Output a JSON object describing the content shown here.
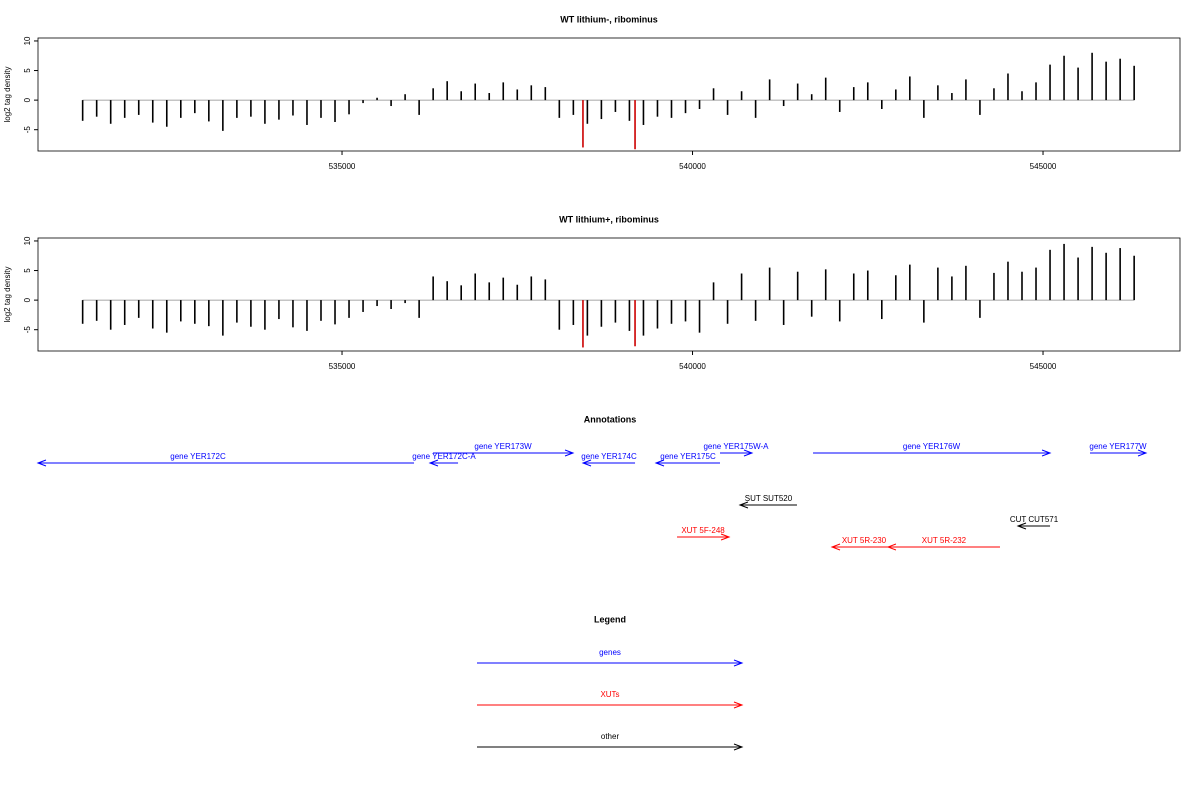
{
  "chart_data": [
    {
      "type": "bar",
      "title": "WT lithium-, ribominus",
      "ylabel": "log2 tag density",
      "xlim": [
        530663,
        546954
      ],
      "ylim": [
        -8.6,
        10.5
      ],
      "xticks": [
        535000,
        540000,
        545000
      ],
      "yticks": [
        -5,
        0,
        5,
        10
      ],
      "series": [
        {
          "color": "#000000",
          "x": [
            531300,
            531500,
            531700,
            531900,
            532100,
            532300,
            532500,
            532700,
            532900,
            533100,
            533300,
            533500,
            533700,
            533900,
            534100,
            534300,
            534500,
            534700,
            534900,
            535100,
            535300,
            535500,
            535700,
            535900,
            536100,
            536300,
            536500,
            536700,
            536900,
            537100,
            537300,
            537500,
            537700,
            537900,
            538100,
            538300,
            538500,
            538700,
            538900,
            539100,
            539300,
            539500,
            539700,
            539900,
            540100,
            540300,
            540500,
            540700,
            540900,
            541100,
            541300,
            541500,
            541700,
            541900,
            542100,
            542300,
            542500,
            542700,
            542900,
            543100,
            543300,
            543500,
            543700,
            543900,
            544100,
            544300,
            544500,
            544700,
            544900,
            545100,
            545300,
            545500,
            545700,
            545900,
            546100,
            546300
          ],
          "values": [
            -3.5,
            -2.8,
            -4,
            -3,
            -2.5,
            -3.8,
            -4.5,
            -3,
            -2.2,
            -3.6,
            -5.2,
            -3,
            -2.8,
            -4,
            -3.3,
            -2.6,
            -4.2,
            -3,
            -3.7,
            -2.4,
            -0.5,
            0.4,
            -1,
            1,
            -2.5,
            2,
            3.2,
            1.5,
            2.8,
            1.2,
            3,
            1.8,
            2.5,
            2.2,
            -3,
            -2.5,
            -4,
            -3.2,
            -2,
            -3.5,
            -4.2,
            -2.8,
            -3,
            -2.2,
            -1.5,
            2,
            -2.5,
            1.5,
            -3,
            3.5,
            -1,
            2.8,
            1,
            3.8,
            -2,
            2.2,
            3,
            -1.5,
            1.8,
            4,
            -3,
            2.5,
            1.2,
            3.5,
            -2.5,
            2,
            4.5,
            1.5,
            3,
            6,
            7.5,
            5.5,
            8,
            6.5,
            7,
            5.8
          ]
        },
        {
          "color": "#cc0000",
          "x": [
            538437,
            539180
          ],
          "values": [
            -8,
            -8.3
          ]
        }
      ]
    },
    {
      "type": "bar",
      "title": "WT lithium+, ribominus",
      "ylabel": "log2 tag density",
      "xlim": [
        530663,
        546954
      ],
      "ylim": [
        -8.6,
        10.5
      ],
      "xticks": [
        535000,
        540000,
        545000
      ],
      "yticks": [
        -5,
        0,
        5,
        10
      ],
      "series": [
        {
          "color": "#000000",
          "x": [
            531300,
            531500,
            531700,
            531900,
            532100,
            532300,
            532500,
            532700,
            532900,
            533100,
            533300,
            533500,
            533700,
            533900,
            534100,
            534300,
            534500,
            534700,
            534900,
            535100,
            535300,
            535500,
            535700,
            535900,
            536100,
            536300,
            536500,
            536700,
            536900,
            537100,
            537300,
            537500,
            537700,
            537900,
            538100,
            538300,
            538500,
            538700,
            538900,
            539100,
            539300,
            539500,
            539700,
            539900,
            540100,
            540300,
            540500,
            540700,
            540900,
            541100,
            541300,
            541500,
            541700,
            541900,
            542100,
            542300,
            542500,
            542700,
            542900,
            543100,
            543300,
            543500,
            543700,
            543900,
            544100,
            544300,
            544500,
            544700,
            544900,
            545100,
            545300,
            545500,
            545700,
            545900,
            546100,
            546300
          ],
          "values": [
            -4,
            -3.5,
            -5,
            -4.2,
            -3,
            -4.8,
            -5.5,
            -3.6,
            -4,
            -4.4,
            -6,
            -3.8,
            -4.5,
            -5,
            -3.2,
            -4.6,
            -5.2,
            -3.5,
            -4.1,
            -3,
            -2,
            -1,
            -1.5,
            -0.5,
            -3,
            4,
            3.2,
            2.5,
            4.5,
            3,
            3.8,
            2.6,
            4,
            3.5,
            -5,
            -4.2,
            -6,
            -4.5,
            -3.8,
            -5.2,
            -6,
            -4.8,
            -4,
            -3.6,
            -5.5,
            3,
            -4,
            4.5,
            -3.5,
            5.5,
            -4.2,
            4.8,
            -2.8,
            5.2,
            -3.6,
            4.5,
            5,
            -3.2,
            4.2,
            6,
            -3.8,
            5.5,
            4,
            5.8,
            -3,
            4.6,
            6.5,
            4.8,
            5.5,
            8.5,
            9.5,
            7.2,
            9,
            8,
            8.8,
            7.5
          ]
        },
        {
          "color": "#cc0000",
          "x": [
            538437,
            539180
          ],
          "values": [
            -8,
            -7.8
          ]
        }
      ]
    }
  ],
  "annotations": {
    "title": "Annotations",
    "items": [
      {
        "label": "gene YER172C",
        "start": 530663,
        "end": 536027,
        "strand": "-",
        "color": "#0000ff"
      },
      {
        "label": "gene YER172C-A",
        "start": 536255,
        "end": 536655,
        "strand": "-",
        "color": "#0000ff"
      },
      {
        "label": "gene YER173W",
        "start": 536298,
        "end": 538295,
        "strand": "+",
        "color": "#0000ff"
      },
      {
        "label": "gene YER174C",
        "start": 538438,
        "end": 539180,
        "strand": "-",
        "color": "#0000ff"
      },
      {
        "label": "gene YER175C",
        "start": 539479,
        "end": 540392,
        "strand": "-",
        "color": "#0000ff"
      },
      {
        "label": "gene YER175W-A",
        "start": 540392,
        "end": 540848,
        "strand": "+",
        "color": "#0000ff"
      },
      {
        "label": "gene YER176W",
        "start": 541719,
        "end": 545100,
        "strand": "+",
        "color": "#0000ff"
      },
      {
        "label": "gene YER177W",
        "start": 545670,
        "end": 546469,
        "strand": "+",
        "color": "#0000ff"
      },
      {
        "label": "SUT SUT520",
        "start": 540677,
        "end": 541490,
        "strand": "-",
        "color": "#000000"
      },
      {
        "label": "XUT 5F-248",
        "start": 539779,
        "end": 540521,
        "strand": "+",
        "color": "#ff0000"
      },
      {
        "label": "CUT CUT571",
        "start": 544643,
        "end": 545100,
        "strand": "-",
        "color": "#000000"
      },
      {
        "label": "XUT 5R-230",
        "start": 541990,
        "end": 542902,
        "strand": "-",
        "color": "#ff0000"
      },
      {
        "label": "XUT 5R-232",
        "start": 542788,
        "end": 544386,
        "strand": "-",
        "color": "#ff0000"
      }
    ]
  },
  "legend": {
    "title": "Legend",
    "items": [
      {
        "label": "genes",
        "color": "#0000ff"
      },
      {
        "label": "XUTs",
        "color": "#ff0000"
      },
      {
        "label": "other",
        "color": "#000000"
      }
    ]
  }
}
